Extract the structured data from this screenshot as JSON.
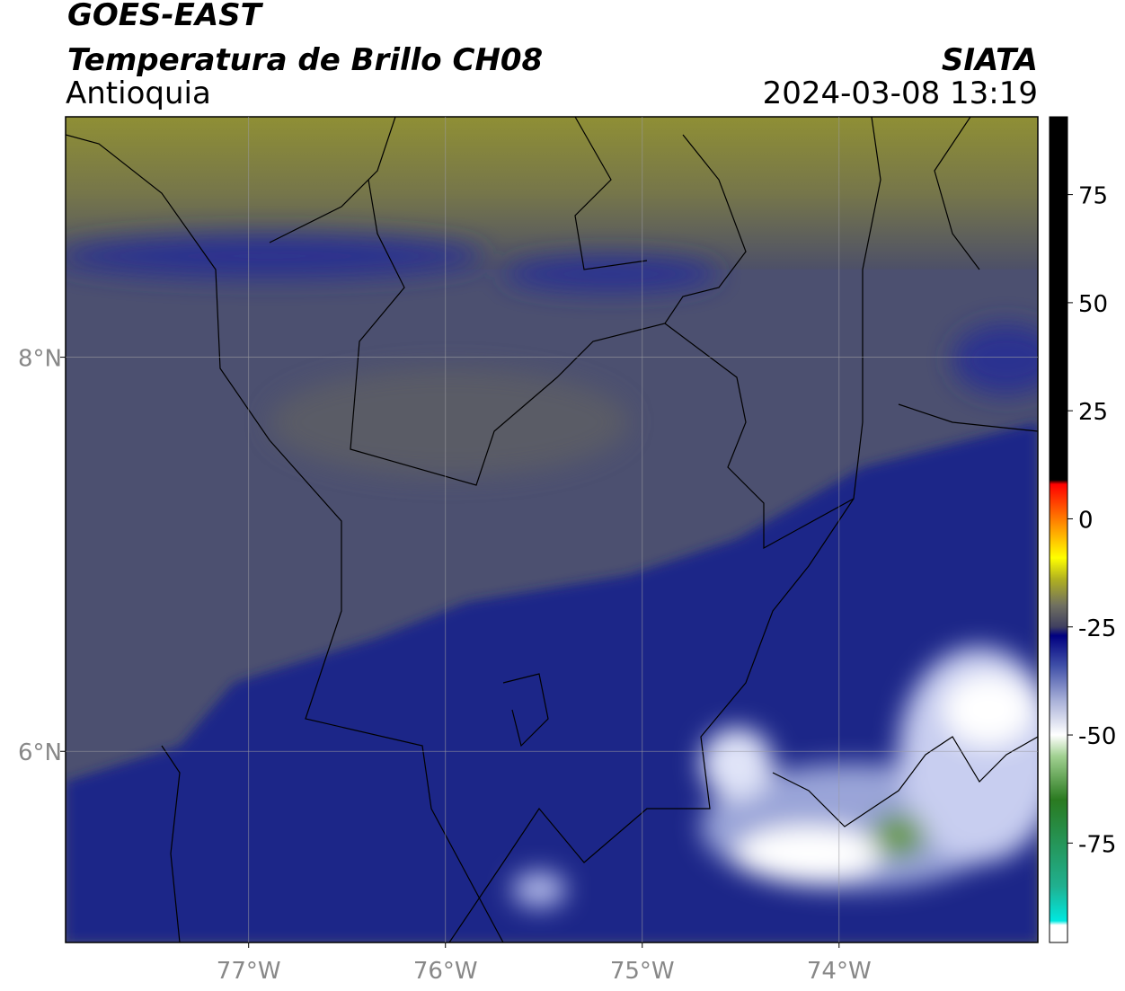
{
  "header": {
    "title": "GOES-EAST",
    "subtitle": "Temperatura de Brillo CH08",
    "region": "Antioquia",
    "source": "SIATA",
    "datetime": "2024-03-08 13:19"
  },
  "map": {
    "lonlim": [
      -77.93,
      -72.99
    ],
    "latlim": [
      5.03,
      9.22
    ],
    "lonticks": [
      {
        "value": -77,
        "label": "77°W"
      },
      {
        "value": -76,
        "label": "76°W"
      },
      {
        "value": -75,
        "label": "75°W"
      },
      {
        "value": -74,
        "label": "74°W"
      }
    ],
    "latticks": [
      {
        "value": 8,
        "label": "8°N"
      },
      {
        "value": 6,
        "label": "6°N"
      }
    ],
    "grid": true
  },
  "colorbar": {
    "lim": [
      -98,
      93
    ],
    "ticks": [
      75,
      50,
      25,
      0,
      -25,
      -50,
      -75
    ],
    "stops": [
      {
        "value": -98,
        "color": "#ffffff"
      },
      {
        "value": -94,
        "color": "#ffffff"
      },
      {
        "value": -93,
        "color": "#00e8e0"
      },
      {
        "value": -85,
        "color": "#20b090"
      },
      {
        "value": -65,
        "color": "#2a7a20"
      },
      {
        "value": -55,
        "color": "#a0d090"
      },
      {
        "value": -50,
        "color": "#ffffff"
      },
      {
        "value": -42,
        "color": "#a8b0d8"
      },
      {
        "value": -34,
        "color": "#4050a8"
      },
      {
        "value": -27,
        "color": "#000080"
      },
      {
        "value": -25,
        "color": "#404060"
      },
      {
        "value": -20,
        "color": "#707060"
      },
      {
        "value": -14,
        "color": "#b0b020"
      },
      {
        "value": -9,
        "color": "#ffff00"
      },
      {
        "value": -2,
        "color": "#ff9900"
      },
      {
        "value": 8,
        "color": "#ff0000"
      },
      {
        "value": 9,
        "color": "#000000"
      },
      {
        "value": 93,
        "color": "#000000"
      }
    ]
  }
}
